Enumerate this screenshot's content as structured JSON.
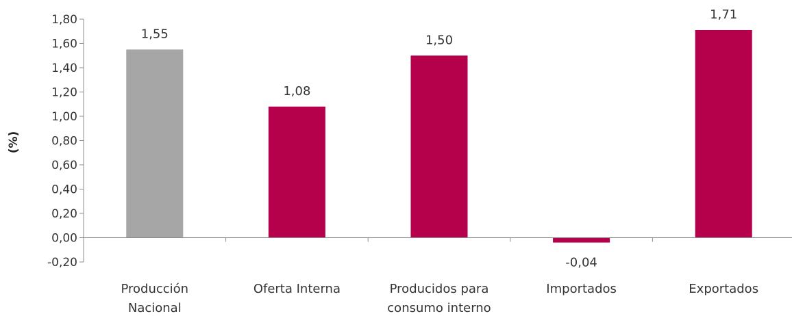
{
  "chart_data": {
    "type": "bar",
    "ylabel": "(%)",
    "xlabel": "",
    "ylim": [
      -0.2,
      1.8
    ],
    "yticks": [
      "-0,20",
      "0,00",
      "0,20",
      "0,40",
      "0,60",
      "0,80",
      "1,00",
      "1,20",
      "1,40",
      "1,60",
      "1,80"
    ],
    "categories": [
      [
        "Producción",
        "Nacional"
      ],
      [
        "Oferta Interna"
      ],
      [
        "Producidos para",
        "consumo interno"
      ],
      [
        "Importados"
      ],
      [
        "Exportados"
      ]
    ],
    "values": [
      1.55,
      1.08,
      1.5,
      -0.04,
      1.71
    ],
    "value_labels": [
      "1,55",
      "1,08",
      "1,50",
      "-0,04",
      "1,71"
    ],
    "colors": [
      "#a6a6a6",
      "#b5004b",
      "#b5004b",
      "#b5004b",
      "#b5004b"
    ],
    "grid": false,
    "legend": "none"
  }
}
